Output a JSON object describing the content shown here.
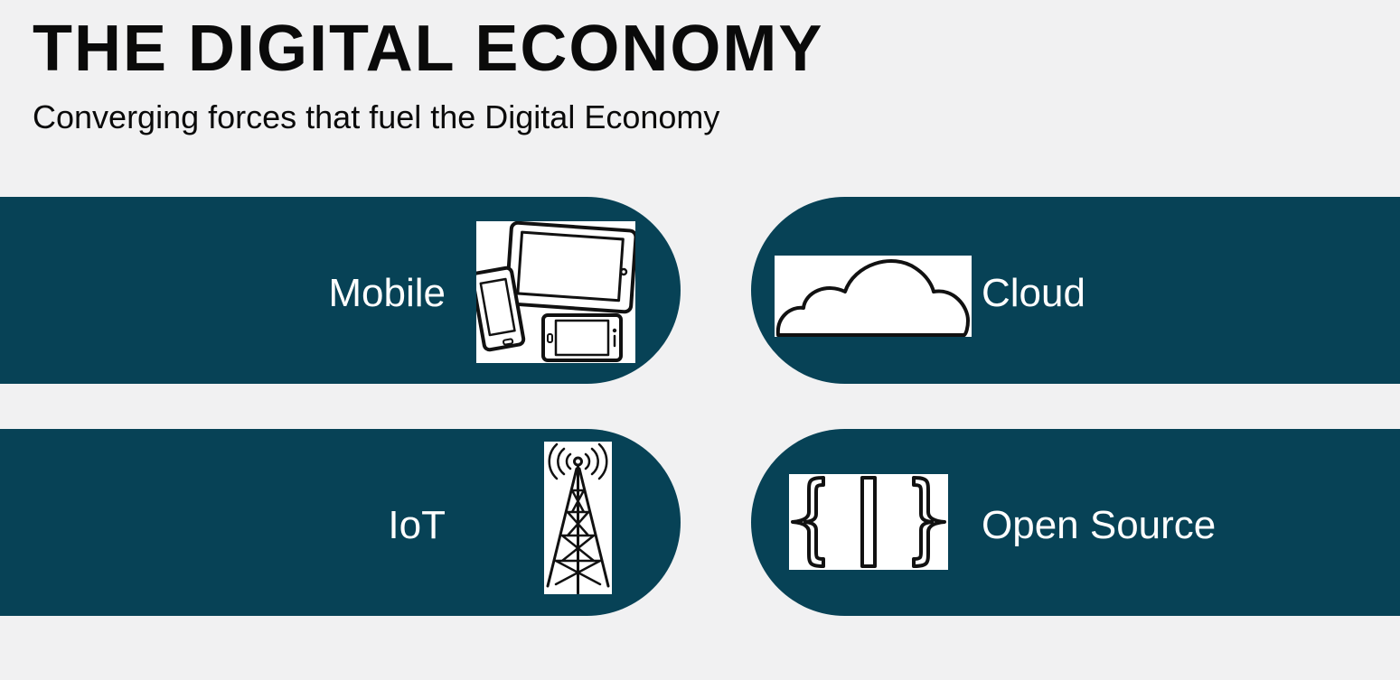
{
  "header": {
    "title": "THE DIGITAL ECONOMY",
    "subtitle": "Converging forces that fuel the Digital Economy"
  },
  "forces": {
    "mobile": {
      "label": "Mobile",
      "icon": "mobile-devices-icon"
    },
    "cloud": {
      "label": "Cloud",
      "icon": "cloud-icon"
    },
    "iot": {
      "label": "IoT",
      "icon": "antenna-tower-icon"
    },
    "open_source": {
      "label": "Open Source",
      "icon": "curly-braces-icon"
    }
  },
  "colors": {
    "background": "#f1f1f2",
    "pill": "#074256",
    "label_text": "#ffffff",
    "title_text": "#0a0a0a"
  }
}
